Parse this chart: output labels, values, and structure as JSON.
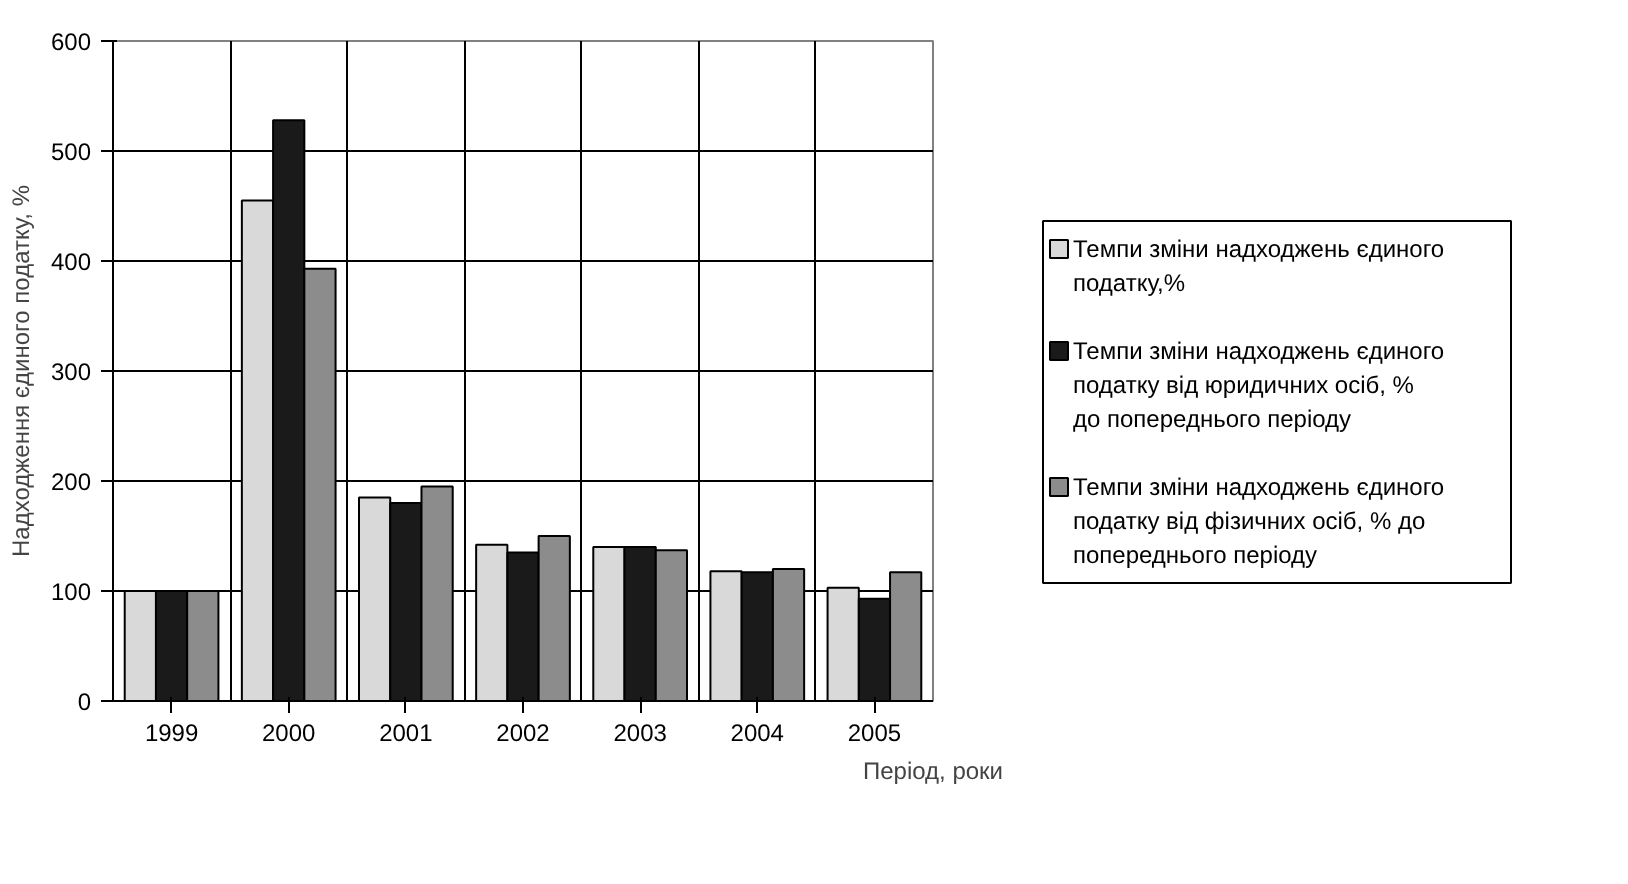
{
  "chart_data": {
    "type": "bar",
    "xlabel": "Період, роки",
    "ylabel": "Надходження єдиного податку, %",
    "categories": [
      "1999",
      "2000",
      "2001",
      "2002",
      "2003",
      "2004",
      "2005"
    ],
    "series": [
      {
        "name": "Темпи зміни надходжень єдиного податку,%",
        "color": "#d9d9d9",
        "values": [
          100,
          455,
          185,
          142,
          140,
          118,
          103
        ]
      },
      {
        "name": "Темпи зміни надходжень єдиного податку від юридичних осіб, % до попереднього періоду",
        "color": "#1a1a1a",
        "values": [
          100,
          528,
          180,
          135,
          140,
          117,
          93
        ]
      },
      {
        "name": "Темпи зміни надходжень єдиного податку від фізичних осіб, % до попереднього періоду",
        "color": "#8c8c8c",
        "values": [
          100,
          393,
          195,
          150,
          137,
          120,
          117
        ]
      }
    ],
    "ylim": [
      0,
      600
    ],
    "yticks": [
      0,
      100,
      200,
      300,
      400,
      500,
      600
    ],
    "grid": true,
    "legend": "right"
  }
}
